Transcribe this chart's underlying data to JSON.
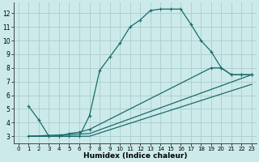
{
  "bg_color": "#cceaea",
  "grid_color": "#b0d0d0",
  "line_color": "#1a6b6b",
  "marker_color": "#1a6b6b",
  "xlabel": "Humidex (Indice chaleur)",
  "xlim": [
    -0.5,
    23.5
  ],
  "ylim": [
    2.5,
    12.8
  ],
  "xticks": [
    0,
    1,
    2,
    3,
    4,
    5,
    6,
    7,
    8,
    9,
    10,
    11,
    12,
    13,
    14,
    15,
    16,
    17,
    18,
    19,
    20,
    21,
    22,
    23
  ],
  "yticks": [
    3,
    4,
    5,
    6,
    7,
    8,
    9,
    10,
    11,
    12
  ],
  "curve1_x": [
    1,
    2,
    3,
    4,
    5,
    6,
    7,
    8,
    9,
    10,
    11,
    12,
    13,
    14,
    15,
    16,
    17,
    18,
    19,
    20,
    21,
    22,
    23
  ],
  "curve1_y": [
    5.2,
    4.2,
    3.0,
    3.0,
    3.0,
    3.0,
    4.5,
    7.8,
    8.8,
    9.8,
    11.0,
    11.5,
    12.2,
    12.3,
    12.3,
    12.3,
    11.2,
    10.0,
    9.2,
    8.0,
    7.5,
    7.5,
    7.5
  ],
  "curve2_x": [
    1,
    3,
    4,
    5,
    6,
    7,
    19,
    20,
    21,
    22,
    23
  ],
  "curve2_y": [
    3.0,
    3.0,
    3.0,
    3.2,
    3.3,
    3.5,
    8.0,
    8.0,
    7.5,
    7.5,
    7.5
  ],
  "curve3_x": [
    1,
    7,
    23
  ],
  "curve3_y": [
    3.0,
    3.2,
    7.5
  ],
  "curve4_x": [
    1,
    7,
    23
  ],
  "curve4_y": [
    3.0,
    3.0,
    6.8
  ]
}
